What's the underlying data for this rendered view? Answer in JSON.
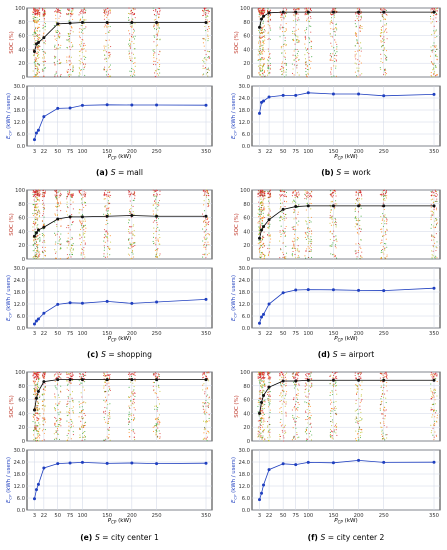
{
  "chart_data": [
    {
      "type": "scatter",
      "caption": "(a) S = mall",
      "soc": {
        "ylabel": "SOC (%)",
        "ylim": [
          0,
          100
        ],
        "yticks": [
          0,
          20,
          40,
          60,
          80,
          100
        ],
        "x": [
          3,
          7,
          11,
          22,
          50,
          75,
          100,
          150,
          200,
          250,
          350
        ],
        "mean": [
          37,
          48,
          50,
          57,
          77,
          78,
          79,
          79,
          79,
          79,
          79
        ]
      },
      "energy": {
        "ylabel": "E_CP (kWh / users)",
        "ylim": [
          0,
          30
        ],
        "yticks": [
          0,
          6,
          12,
          18,
          24,
          30
        ],
        "x": [
          3,
          7,
          11,
          22,
          50,
          75,
          100,
          150,
          200,
          250,
          350
        ],
        "values": [
          3.2,
          6.5,
          7.9,
          14.7,
          18.8,
          19.0,
          20.3,
          20.6,
          20.5,
          20.5,
          20.4
        ]
      },
      "xlabel": "P_CP (kW)",
      "xticks": [
        3,
        22,
        50,
        75,
        100,
        150,
        200,
        250,
        350
      ]
    },
    {
      "type": "scatter",
      "caption": "(b) S = work",
      "soc": {
        "ylabel": "SOC (%)",
        "ylim": [
          0,
          100
        ],
        "yticks": [
          0,
          20,
          40,
          60,
          80,
          100
        ],
        "x": [
          3,
          7,
          11,
          22,
          50,
          75,
          100,
          150,
          200,
          250,
          350
        ],
        "mean": [
          72,
          84,
          88,
          93,
          94,
          94,
          94,
          94,
          94,
          94,
          94
        ]
      },
      "energy": {
        "ylabel": "E_CP (kWh / users)",
        "ylim": [
          0,
          30
        ],
        "yticks": [
          0,
          6,
          12,
          18,
          24,
          30
        ],
        "x": [
          3,
          7,
          11,
          22,
          50,
          75,
          100,
          150,
          200,
          250,
          350
        ],
        "values": [
          16.3,
          21.8,
          22.5,
          24.5,
          25.3,
          25.3,
          26.6,
          26.0,
          26.0,
          25.1,
          25.8
        ]
      },
      "xlabel": "P_CP (kW)",
      "xticks": [
        3,
        22,
        50,
        75,
        100,
        150,
        200,
        250,
        350
      ]
    },
    {
      "type": "scatter",
      "caption": "(c) S = shopping",
      "soc": {
        "ylabel": "SOC (%)",
        "ylim": [
          0,
          100
        ],
        "yticks": [
          0,
          20,
          40,
          60,
          80,
          100
        ],
        "x": [
          3,
          7,
          11,
          22,
          50,
          75,
          100,
          150,
          200,
          250,
          350
        ],
        "mean": [
          33,
          38,
          42,
          46,
          58,
          61,
          61,
          62,
          63,
          62,
          62
        ]
      },
      "energy": {
        "ylabel": "E_CP (kWh / users)",
        "ylim": [
          0,
          30
        ],
        "yticks": [
          0,
          6,
          12,
          18,
          24,
          30
        ],
        "x": [
          3,
          7,
          11,
          22,
          50,
          75,
          100,
          150,
          200,
          250,
          350
        ],
        "values": [
          2.0,
          3.5,
          4.5,
          7.4,
          11.8,
          12.6,
          12.4,
          13.3,
          12.3,
          13.0,
          14.3
        ]
      },
      "xlabel": "P_CP (kW)",
      "xticks": [
        3,
        22,
        50,
        75,
        100,
        150,
        200,
        250,
        350
      ]
    },
    {
      "type": "scatter",
      "caption": "(d) S = airport",
      "soc": {
        "ylabel": "SOC (%)",
        "ylim": [
          0,
          100
        ],
        "yticks": [
          0,
          20,
          40,
          60,
          80,
          100
        ],
        "x": [
          3,
          7,
          11,
          22,
          50,
          75,
          100,
          150,
          200,
          250,
          350
        ],
        "mean": [
          30,
          42,
          47,
          57,
          72,
          76,
          77,
          77,
          77,
          77,
          77
        ]
      },
      "energy": {
        "ylabel": "E_CP (kWh / users)",
        "ylim": [
          0,
          30
        ],
        "yticks": [
          0,
          6,
          12,
          18,
          24,
          30
        ],
        "x": [
          3,
          7,
          11,
          22,
          50,
          75,
          100,
          150,
          200,
          250,
          350
        ],
        "values": [
          2.4,
          5.5,
          6.8,
          12.0,
          17.6,
          19.0,
          19.2,
          19.1,
          18.8,
          18.7,
          19.9
        ]
      },
      "xlabel": "P_CP (kW)",
      "xticks": [
        3,
        22,
        50,
        75,
        100,
        150,
        200,
        250,
        350
      ]
    },
    {
      "type": "scatter",
      "caption": "(e) S = city center 1",
      "soc": {
        "ylabel": "SOC (%)",
        "ylim": [
          0,
          100
        ],
        "yticks": [
          0,
          20,
          40,
          60,
          80,
          100
        ],
        "x": [
          3,
          7,
          11,
          22,
          50,
          75,
          100,
          150,
          200,
          250,
          350
        ],
        "mean": [
          45,
          62,
          72,
          86,
          89,
          89,
          89,
          89,
          89,
          89,
          89
        ]
      },
      "energy": {
        "ylabel": "E_CP (kWh / users)",
        "ylim": [
          0,
          30
        ],
        "yticks": [
          0,
          6,
          12,
          18,
          24,
          30
        ],
        "x": [
          3,
          7,
          11,
          22,
          50,
          75,
          100,
          150,
          200,
          250,
          350
        ],
        "values": [
          5.6,
          10.2,
          12.8,
          21.0,
          23.2,
          23.5,
          23.8,
          23.3,
          23.5,
          23.2,
          23.4
        ]
      },
      "xlabel": "P_CP (kW)",
      "xticks": [
        3,
        22,
        50,
        75,
        100,
        150,
        200,
        250,
        350
      ]
    },
    {
      "type": "scatter",
      "caption": "(f) S = city center 2",
      "soc": {
        "ylabel": "SOC (%)",
        "ylim": [
          0,
          100
        ],
        "yticks": [
          0,
          20,
          40,
          60,
          80,
          100
        ],
        "x": [
          3,
          7,
          11,
          22,
          50,
          75,
          100,
          150,
          200,
          250,
          350
        ],
        "mean": [
          40,
          56,
          66,
          78,
          87,
          87,
          88,
          88,
          88,
          88,
          88
        ]
      },
      "energy": {
        "ylabel": "E_CP (kWh / users)",
        "ylim": [
          0,
          30
        ],
        "yticks": [
          0,
          6,
          12,
          18,
          24,
          30
        ],
        "x": [
          3,
          7,
          11,
          22,
          50,
          75,
          100,
          150,
          200,
          250,
          350
        ],
        "values": [
          5.2,
          8.4,
          12.5,
          20.2,
          23.1,
          22.7,
          23.8,
          23.6,
          24.8,
          23.8,
          23.9
        ]
      },
      "xlabel": "P_CP (kW)",
      "xticks": [
        3,
        22,
        50,
        75,
        100,
        150,
        200,
        250,
        350
      ]
    }
  ],
  "colors": {
    "scatter_dots": [
      "#d62728",
      "#ff7f0e",
      "#2ca02c",
      "#bcbd22"
    ],
    "mean_line": "#000000",
    "energy_line": "#1f3fbf",
    "energy_marker": "#1f3fbf"
  }
}
